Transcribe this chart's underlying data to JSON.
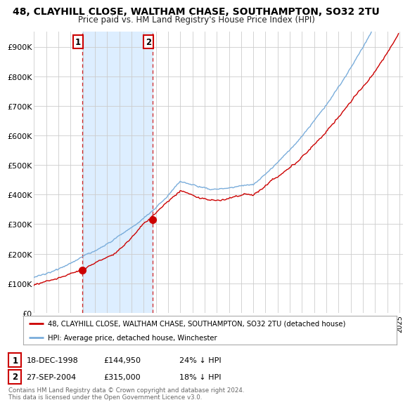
{
  "title": "48, CLAYHILL CLOSE, WALTHAM CHASE, SOUTHAMPTON, SO32 2TU",
  "subtitle": "Price paid vs. HM Land Registry's House Price Index (HPI)",
  "ylabel_ticks": [
    "£0",
    "£100K",
    "£200K",
    "£300K",
    "£400K",
    "£500K",
    "£600K",
    "£700K",
    "£800K",
    "£900K"
  ],
  "ytick_values": [
    0,
    100000,
    200000,
    300000,
    400000,
    500000,
    600000,
    700000,
    800000,
    900000
  ],
  "ylim": [
    0,
    950000
  ],
  "xlim_start": 1995.0,
  "xlim_end": 2025.3,
  "red_color": "#cc0000",
  "blue_color": "#7aaddb",
  "shade_color": "#ddeeff",
  "sale1_x": 1998.96,
  "sale1_y": 144950,
  "sale2_x": 2004.74,
  "sale2_y": 315000,
  "sale1_label": "1",
  "sale2_label": "2",
  "legend_line1": "48, CLAYHILL CLOSE, WALTHAM CHASE, SOUTHAMPTON, SO32 2TU (detached house)",
  "legend_line2": "HPI: Average price, detached house, Winchester",
  "table_row1": [
    "1",
    "18-DEC-1998",
    "£144,950",
    "24% ↓ HPI"
  ],
  "table_row2": [
    "2",
    "27-SEP-2004",
    "£315,000",
    "18% ↓ HPI"
  ],
  "footnote": "Contains HM Land Registry data © Crown copyright and database right 2024.\nThis data is licensed under the Open Government Licence v3.0.",
  "bg_color": "#ffffff",
  "grid_color": "#cccccc"
}
